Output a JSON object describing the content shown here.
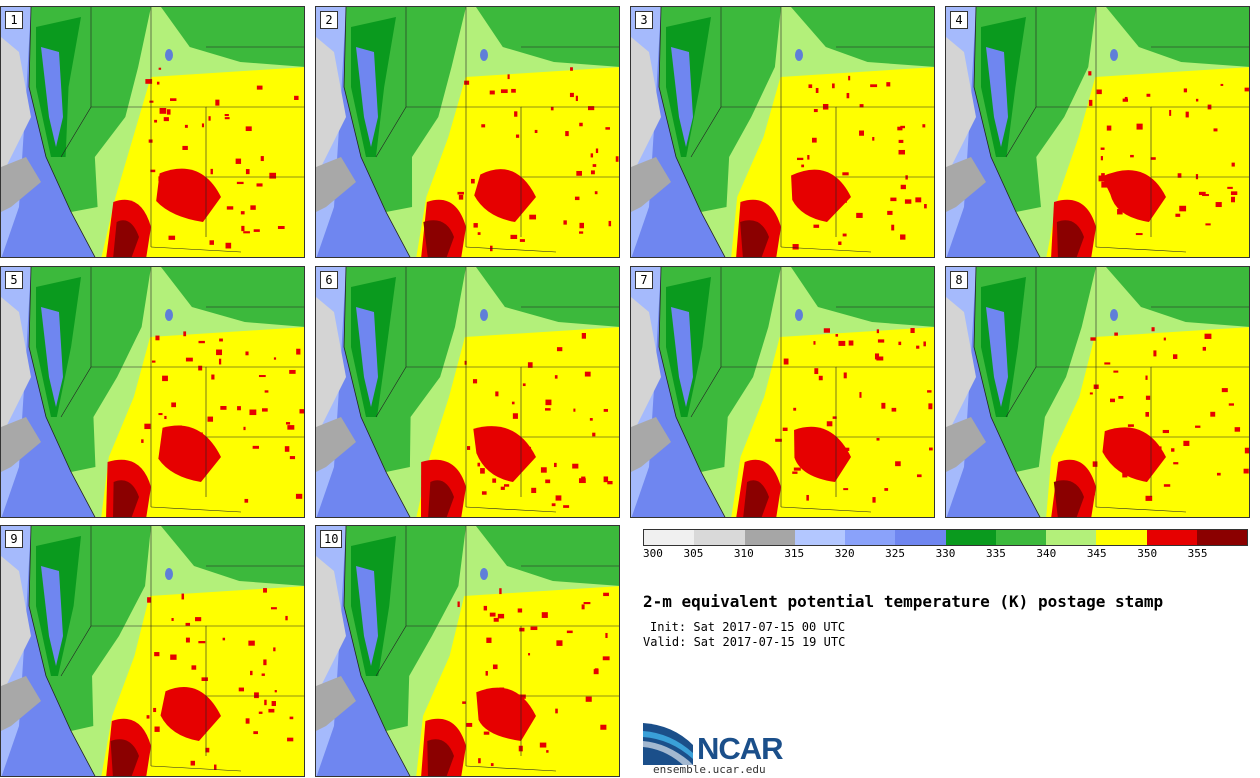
{
  "panels": [
    {
      "label": "1"
    },
    {
      "label": "2"
    },
    {
      "label": "3"
    },
    {
      "label": "4"
    },
    {
      "label": "5"
    },
    {
      "label": "6"
    },
    {
      "label": "7"
    },
    {
      "label": "8"
    },
    {
      "label": "9"
    },
    {
      "label": "10"
    }
  ],
  "colorbar": {
    "ticks": [
      "300",
      "305",
      "310",
      "315",
      "320",
      "325",
      "330",
      "335",
      "340",
      "345",
      "350",
      "355"
    ],
    "colors": [
      "#f0f0f0",
      "#d9d9d9",
      "#a6a6a6",
      "#b3c7ff",
      "#8aa2fa",
      "#6f86f0",
      "#0a9a1e",
      "#3cb93c",
      "#b3f07a",
      "#ffff00",
      "#e60000",
      "#8b0000"
    ]
  },
  "title": "2-m equivalent potential temperature (K) postage stamp",
  "init": "Init: Sat 2017-07-15 00 UTC",
  "valid": "Valid: Sat 2017-07-15 19 UTC",
  "logo": {
    "name": "NCAR",
    "site": "ensemble.ucar.edu"
  }
}
